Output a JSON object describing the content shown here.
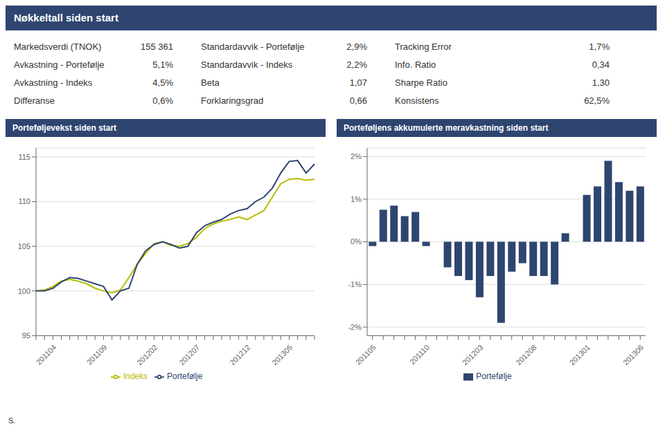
{
  "title": "Nøkkeltall siden start",
  "header_color": "#2e4570",
  "table": [
    [
      "Markedsverdi (TNOK)",
      "155 361",
      "Standardavvik - Portefølje",
      "2,9%",
      "Tracking Error",
      "1,7%"
    ],
    [
      "Avkastning - Portefølje",
      "5,1%",
      "Standardavvik - Indeks",
      "2,2%",
      "Info. Ratio",
      "0,34"
    ],
    [
      "Avkastning - Indeks",
      "4,5%",
      "Beta",
      "1,07",
      "Sharpe Ratio",
      "1,30"
    ],
    [
      "Differanse",
      "0,6%",
      "Forklaringsgrad",
      "0,66",
      "Konsistens",
      "62,5%"
    ]
  ],
  "annotations": [
    "S."
  ],
  "chart_data": [
    {
      "type": "line",
      "title": "Porteføljevekst siden start",
      "categories": [
        null,
        null,
        "201104",
        null,
        null,
        null,
        null,
        null,
        "201109",
        null,
        null,
        null,
        null,
        null,
        "201202",
        null,
        null,
        null,
        null,
        "201207",
        null,
        null,
        null,
        null,
        null,
        "201212",
        null,
        null,
        null,
        null,
        "201305",
        null,
        null,
        null
      ],
      "series": [
        {
          "name": "Indeks",
          "color": "#b5bd00",
          "values": [
            100.0,
            100.1,
            100.5,
            101.1,
            101.3,
            101.1,
            100.8,
            100.3,
            100.0,
            99.8,
            100.1,
            101.5,
            103.0,
            104.2,
            105.3,
            105.5,
            105.1,
            105.0,
            105.3,
            106.0,
            107.0,
            107.5,
            107.8,
            108.0,
            108.3,
            108.0,
            108.5,
            109.0,
            110.5,
            112.0,
            112.5,
            112.6,
            112.4,
            112.5
          ]
        },
        {
          "name": "Portefølje",
          "color": "#2e4570",
          "values": [
            100.0,
            100.0,
            100.3,
            101.0,
            101.5,
            101.4,
            101.1,
            100.8,
            100.5,
            99.0,
            100.0,
            100.3,
            103.0,
            104.5,
            105.2,
            105.5,
            105.2,
            104.8,
            105.0,
            106.5,
            107.3,
            107.7,
            108.0,
            108.6,
            109.0,
            109.2,
            110.0,
            110.5,
            111.5,
            113.2,
            114.5,
            114.6,
            113.2,
            114.2
          ]
        }
      ],
      "ylim": [
        95,
        116
      ],
      "yticks": [
        95,
        100,
        105,
        110,
        115
      ],
      "grid": true,
      "legend": "bottom"
    },
    {
      "type": "bar",
      "title": "Porteføljens akkumulerte meravkastning siden start",
      "categories": [
        "201105",
        null,
        null,
        null,
        null,
        "201110",
        null,
        null,
        null,
        null,
        "201203",
        null,
        null,
        null,
        null,
        "201208",
        null,
        null,
        null,
        null,
        "201301",
        null,
        null,
        null,
        null,
        "201306"
      ],
      "series": [
        {
          "name": "Portefølje",
          "color": "#2e4570",
          "values": [
            -0.001,
            0.0075,
            0.0085,
            0.006,
            0.007,
            -0.001,
            0.0,
            -0.006,
            -0.008,
            -0.009,
            -0.013,
            -0.008,
            -0.019,
            -0.007,
            -0.005,
            -0.008,
            -0.008,
            -0.01,
            0.002,
            0.0,
            0.011,
            0.013,
            0.019,
            0.014,
            0.012,
            0.013
          ]
        }
      ],
      "ylim": [
        -0.022,
        0.022
      ],
      "yticks": [
        {
          "value": -0.02,
          "label": "-2%"
        },
        {
          "value": -0.01,
          "label": "-1%"
        },
        {
          "value": 0.0,
          "label": "0%"
        },
        {
          "value": 0.01,
          "label": "1%"
        },
        {
          "value": 0.02,
          "label": "2%"
        }
      ],
      "grid": true,
      "legend": "bottom"
    }
  ]
}
